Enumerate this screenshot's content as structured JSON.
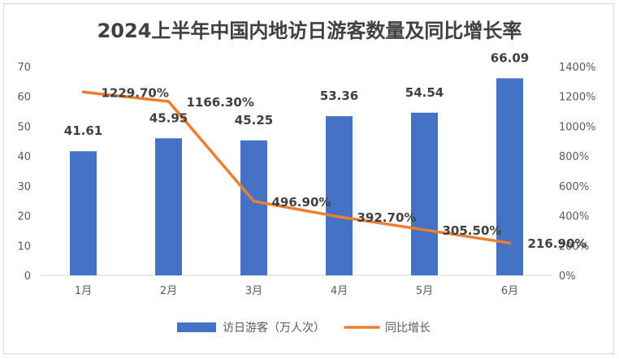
{
  "chart_data": {
    "type": "bar",
    "title": "2024上半年中国内地访日游客数量及同比增长率",
    "categories": [
      "1月",
      "2月",
      "3月",
      "4月",
      "5月",
      "6月"
    ],
    "series": [
      {
        "name": "访日游客（万人次）",
        "type": "bar",
        "axis": "left",
        "color": "#4472c4",
        "values": [
          41.61,
          45.95,
          45.25,
          53.36,
          54.54,
          66.09
        ],
        "labels": [
          "41.61",
          "45.95",
          "45.25",
          "53.36",
          "54.54",
          "66.09"
        ]
      },
      {
        "name": "同比增长",
        "type": "line",
        "axis": "right",
        "color": "#ed7d31",
        "values": [
          1229.7,
          1166.3,
          496.9,
          392.7,
          305.5,
          216.9
        ],
        "labels": [
          "1229.70%",
          "1166.30%",
          "496.90%",
          "392.70%",
          "305.50%",
          "216.90%"
        ]
      }
    ],
    "y_left": {
      "min": 0,
      "max": 70,
      "step": 10,
      "ticks": [
        "0",
        "10",
        "20",
        "30",
        "40",
        "50",
        "60",
        "70"
      ]
    },
    "y_right": {
      "min": 0,
      "max": 1400,
      "step": 200,
      "ticks": [
        "0%",
        "200%",
        "400%",
        "600%",
        "800%",
        "1000%",
        "1200%",
        "1400%"
      ]
    },
    "grid": false,
    "legend_position": "bottom"
  }
}
